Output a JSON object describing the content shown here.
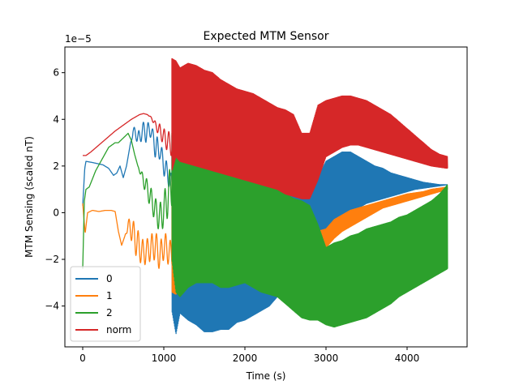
{
  "chart_data": {
    "type": "line",
    "title": "Expected MTM Sensor",
    "xlabel": "Time (s)",
    "ylabel": "MTM Sensing (scaled nT)",
    "y_offset_text": "1e−5",
    "xlim": [
      -220,
      4740
    ],
    "ylim": [
      -5.75,
      7.1
    ],
    "xticks": [
      0,
      1000,
      2000,
      3000,
      4000
    ],
    "yticks": [
      -4,
      -2,
      0,
      2,
      4,
      6
    ],
    "grid": false,
    "legend_position": "lower-left",
    "series": [
      {
        "name": "0",
        "color": "#1f77b4",
        "segments": [
          {
            "t": [
              0,
              25,
              40,
              120,
              250,
              320,
              380,
              420,
              460,
              500,
              540,
              580,
              620,
              660,
              700,
              740,
              780,
              820,
              860,
              900,
              950,
              1000,
              1050,
              1100
            ],
            "lo": [
              0.3,
              1.9,
              2.2,
              2.15,
              2.05,
              1.9,
              1.6,
              1.7,
              2.0,
              1.5,
              2.0,
              2.8,
              3.3,
              3.1,
              2.8,
              3.3,
              3.0,
              3.3,
              3.1,
              2.2,
              2.3,
              1.6,
              1.2,
              0.8
            ],
            "hi": [
              0.3,
              1.9,
              2.2,
              2.15,
              2.05,
              1.9,
              1.6,
              1.7,
              2.0,
              1.5,
              2.0,
              2.8,
              3.7,
              3.6,
              3.5,
              3.9,
              3.8,
              3.9,
              3.6,
              3.4,
              3.0,
              2.6,
              2.0,
              1.6
            ]
          },
          {
            "t": [
              1100,
              1150,
              1200,
              1300,
              1400,
              1500,
              1600,
              1700,
              1800,
              1900,
              2000,
              2100,
              2200,
              2300,
              2400,
              2500,
              2600,
              2700,
              2800,
              2900,
              3000,
              3100,
              3200,
              3300,
              3400,
              3500,
              3600,
              3700,
              3800,
              3900,
              4000,
              4100,
              4200,
              4300,
              4400,
              4500
            ],
            "lo": [
              -4.2,
              -5.2,
              -4.3,
              -4.6,
              -4.8,
              -5.1,
              -5.1,
              -5.0,
              -5.0,
              -4.7,
              -4.6,
              -4.4,
              -4.2,
              -4.0,
              -3.6,
              -3.4,
              -3.0,
              -2.6,
              -2.2,
              -1.7,
              -1.2,
              -0.7,
              -0.3,
              0.0,
              0.2,
              0.4,
              0.5,
              0.6,
              0.7,
              0.8,
              0.9,
              1.0,
              1.05,
              1.1,
              1.15,
              1.2
            ],
            "hi": [
              3.3,
              3.5,
              3.3,
              3.0,
              2.8,
              2.6,
              2.4,
              2.3,
              2.1,
              2.0,
              1.8,
              1.6,
              1.5,
              1.3,
              1.2,
              1.1,
              1.0,
              0.9,
              0.8,
              1.5,
              2.2,
              2.4,
              2.6,
              2.6,
              2.4,
              2.2,
              2.0,
              1.9,
              1.7,
              1.6,
              1.5,
              1.4,
              1.3,
              1.25,
              1.2,
              1.2
            ]
          }
        ]
      },
      {
        "name": "1",
        "color": "#ff7f0e",
        "segments": [
          {
            "t": [
              0,
              30,
              60,
              120,
              200,
              280,
              350,
              400,
              440,
              480,
              520,
              560,
              600,
              650,
              700,
              750,
              800,
              850,
              900,
              950,
              1000,
              1050,
              1100
            ],
            "lo": [
              0.4,
              -0.9,
              0.0,
              0.1,
              0.05,
              0.1,
              0.1,
              0.05,
              -0.8,
              -1.4,
              -1.0,
              -0.8,
              -1.2,
              -1.8,
              -2.1,
              -2.3,
              -2.1,
              -2.1,
              -2.0,
              -2.5,
              -2.0,
              -2.2,
              -2.4
            ],
            "hi": [
              0.4,
              -0.9,
              0.0,
              0.1,
              0.05,
              0.1,
              0.1,
              0.05,
              -0.8,
              -1.4,
              -1.0,
              -0.3,
              -0.2,
              -0.5,
              -0.9,
              -1.2,
              -1.1,
              -0.9,
              -0.8,
              -1.3,
              -0.8,
              -1.0,
              -1.3
            ]
          },
          {
            "t": [
              1100,
              1150,
              1200,
              1300,
              1400,
              1500,
              1600,
              1700,
              1800,
              1900,
              2000,
              2100,
              2200,
              2300,
              2400,
              2500,
              2600,
              2700,
              2800,
              2900,
              3000,
              3100,
              3200,
              3300,
              3400,
              3500,
              3600,
              3700,
              3800,
              3900,
              4000,
              4100,
              4200,
              4300,
              4400,
              4500
            ],
            "lo": [
              -3.4,
              -3.5,
              -3.0,
              -2.6,
              -2.4,
              -2.2,
              -2.2,
              -2.2,
              -2.3,
              -2.3,
              -2.2,
              -2.1,
              -2.0,
              -1.9,
              -1.8,
              -1.6,
              -1.7,
              -1.8,
              -1.9,
              -1.8,
              -1.5,
              -1.1,
              -0.8,
              -0.6,
              -0.4,
              -0.2,
              0.0,
              0.2,
              0.3,
              0.4,
              0.5,
              0.6,
              0.7,
              0.8,
              0.9,
              1.0
            ],
            "hi": [
              1.6,
              2.3,
              2.8,
              2.2,
              1.9,
              1.5,
              1.2,
              1.0,
              0.8,
              0.7,
              0.6,
              0.5,
              0.4,
              0.3,
              0.3,
              0.2,
              0.1,
              -0.3,
              -0.6,
              -0.8,
              -0.7,
              -0.3,
              -0.1,
              0.1,
              0.2,
              0.3,
              0.4,
              0.5,
              0.6,
              0.7,
              0.8,
              0.85,
              0.9,
              1.0,
              1.05,
              1.1
            ]
          }
        ]
      },
      {
        "name": "2",
        "color": "#2ca02c",
        "segments": [
          {
            "t": [
              0,
              20,
              40,
              80,
              160,
              240,
              320,
              400,
              440,
              500,
              560,
              600,
              640,
              680,
              720,
              760,
              800,
              850,
              900,
              950,
              1000,
              1050,
              1100
            ],
            "lo": [
              -2.4,
              0.5,
              1.0,
              1.1,
              1.8,
              2.3,
              2.8,
              3.0,
              3.0,
              3.2,
              3.4,
              3.1,
              2.5,
              2.0,
              1.5,
              1.0,
              0.6,
              0.0,
              -0.4,
              -0.9,
              -0.6,
              -0.2,
              0.3
            ],
            "hi": [
              -2.4,
              0.5,
              1.0,
              1.1,
              1.8,
              2.3,
              2.8,
              3.0,
              3.0,
              3.2,
              3.4,
              3.1,
              2.5,
              2.0,
              1.8,
              1.6,
              1.4,
              1.0,
              0.6,
              0.4,
              0.8,
              1.6,
              2.2
            ]
          },
          {
            "t": [
              1100,
              1150,
              1200,
              1300,
              1400,
              1500,
              1600,
              1700,
              1800,
              1900,
              2000,
              2100,
              2200,
              2300,
              2400,
              2500,
              2600,
              2700,
              2800,
              2900,
              3000,
              3100,
              3200,
              3300,
              3400,
              3500,
              3600,
              3700,
              3800,
              3900,
              4000,
              4100,
              4200,
              4300,
              4400,
              4500
            ],
            "lo": [
              -2.0,
              -3.4,
              -3.6,
              -3.2,
              -3.0,
              -3.0,
              -3.0,
              -3.2,
              -3.2,
              -3.1,
              -3.0,
              -3.2,
              -3.4,
              -3.5,
              -3.6,
              -3.9,
              -4.2,
              -4.5,
              -4.6,
              -4.6,
              -4.8,
              -4.9,
              -4.8,
              -4.7,
              -4.6,
              -4.5,
              -4.3,
              -4.1,
              -3.9,
              -3.6,
              -3.4,
              -3.2,
              -3.0,
              -2.8,
              -2.6,
              -2.4
            ],
            "hi": [
              3.4,
              3.8,
              3.6,
              3.2,
              2.8,
              2.6,
              2.4,
              2.3,
              2.1,
              2.0,
              1.8,
              1.6,
              1.4,
              1.2,
              1.0,
              0.8,
              0.6,
              0.5,
              0.3,
              -0.5,
              -1.5,
              -1.3,
              -1.2,
              -1.0,
              -0.9,
              -0.7,
              -0.6,
              -0.5,
              -0.4,
              -0.2,
              -0.1,
              0.1,
              0.3,
              0.5,
              0.8,
              1.2
            ]
          }
        ]
      },
      {
        "name": "norm",
        "color": "#d62728",
        "segments": [
          {
            "t": [
              0,
              40,
              100,
              200,
              300,
              400,
              500,
              600,
              650,
              700,
              750,
              800,
              850,
              900,
              950,
              1000,
              1050,
              1100
            ],
            "lo": [
              2.45,
              2.45,
              2.6,
              2.9,
              3.2,
              3.5,
              3.75,
              4.0,
              4.1,
              4.2,
              4.25,
              4.2,
              4.0,
              3.6,
              3.2,
              2.9,
              2.6,
              2.4
            ],
            "hi": [
              2.45,
              2.45,
              2.6,
              2.9,
              3.2,
              3.5,
              3.75,
              4.0,
              4.1,
              4.2,
              4.25,
              4.2,
              4.1,
              3.9,
              3.8,
              3.6,
              3.5,
              3.4
            ]
          },
          {
            "t": [
              1100,
              1150,
              1200,
              1300,
              1400,
              1500,
              1600,
              1700,
              1800,
              1900,
              2000,
              2100,
              2200,
              2300,
              2400,
              2500,
              2600,
              2700,
              2800,
              2900,
              3000,
              3100,
              3200,
              3300,
              3400,
              3500,
              3600,
              3700,
              3800,
              3900,
              4000,
              4100,
              4200,
              4300,
              4400,
              4500
            ],
            "lo": [
              1.8,
              2.4,
              2.2,
              2.1,
              2.0,
              1.9,
              1.8,
              1.7,
              1.6,
              1.5,
              1.4,
              1.3,
              1.2,
              1.1,
              1.0,
              0.8,
              0.7,
              0.6,
              0.6,
              1.4,
              2.4,
              2.6,
              2.8,
              2.9,
              2.9,
              2.8,
              2.7,
              2.6,
              2.5,
              2.4,
              2.3,
              2.2,
              2.1,
              2.0,
              1.95,
              1.9
            ],
            "hi": [
              6.6,
              6.5,
              6.2,
              6.4,
              6.3,
              6.1,
              6.0,
              5.7,
              5.5,
              5.3,
              5.2,
              5.1,
              4.9,
              4.7,
              4.5,
              4.4,
              4.2,
              3.4,
              3.4,
              4.6,
              4.8,
              4.9,
              5.0,
              5.0,
              4.9,
              4.8,
              4.6,
              4.4,
              4.2,
              3.9,
              3.6,
              3.3,
              3.0,
              2.7,
              2.5,
              2.4
            ]
          }
        ]
      }
    ]
  }
}
